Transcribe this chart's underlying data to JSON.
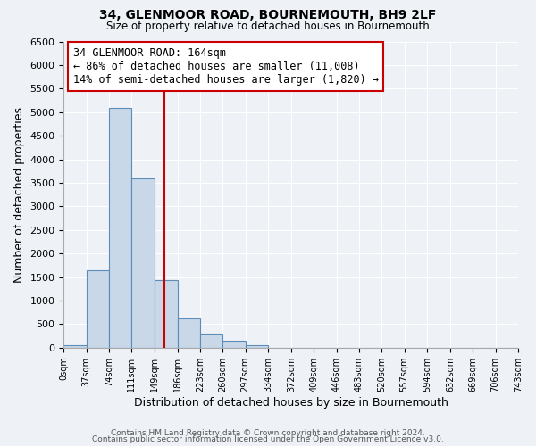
{
  "title": "34, GLENMOOR ROAD, BOURNEMOUTH, BH9 2LF",
  "subtitle": "Size of property relative to detached houses in Bournemouth",
  "xlabel": "Distribution of detached houses by size in Bournemouth",
  "ylabel": "Number of detached properties",
  "bin_edges": [
    0,
    37,
    74,
    111,
    149,
    186,
    223,
    260,
    297,
    334,
    372,
    409,
    446,
    483,
    520,
    557,
    594,
    632,
    669,
    706,
    743
  ],
  "bar_heights": [
    60,
    1650,
    5080,
    3600,
    1430,
    620,
    300,
    145,
    60,
    0,
    0,
    0,
    0,
    0,
    0,
    0,
    0,
    0,
    0,
    0
  ],
  "bar_color": "#c8d8e8",
  "bar_edge_color": "#5b8db8",
  "property_size": 164,
  "vline_color": "#cc0000",
  "annotation_line1": "34 GLENMOOR ROAD: 164sqm",
  "annotation_line2": "← 86% of detached houses are smaller (11,008)",
  "annotation_line3": "14% of semi-detached houses are larger (1,820) →",
  "annotation_box_color": "#ffffff",
  "annotation_box_edge_color": "#cc0000",
  "ylim": [
    0,
    6500
  ],
  "yticks": [
    0,
    500,
    1000,
    1500,
    2000,
    2500,
    3000,
    3500,
    4000,
    4500,
    5000,
    5500,
    6000,
    6500
  ],
  "tick_labels": [
    "0sqm",
    "37sqm",
    "74sqm",
    "111sqm",
    "149sqm",
    "186sqm",
    "223sqm",
    "260sqm",
    "297sqm",
    "334sqm",
    "372sqm",
    "409sqm",
    "446sqm",
    "483sqm",
    "520sqm",
    "557sqm",
    "594sqm",
    "632sqm",
    "669sqm",
    "706sqm",
    "743sqm"
  ],
  "footer1": "Contains HM Land Registry data © Crown copyright and database right 2024.",
  "footer2": "Contains public sector information licensed under the Open Government Licence v3.0.",
  "bg_color": "#eef2f7",
  "plot_bg_color": "#eef2f7",
  "grid_color": "#ffffff"
}
